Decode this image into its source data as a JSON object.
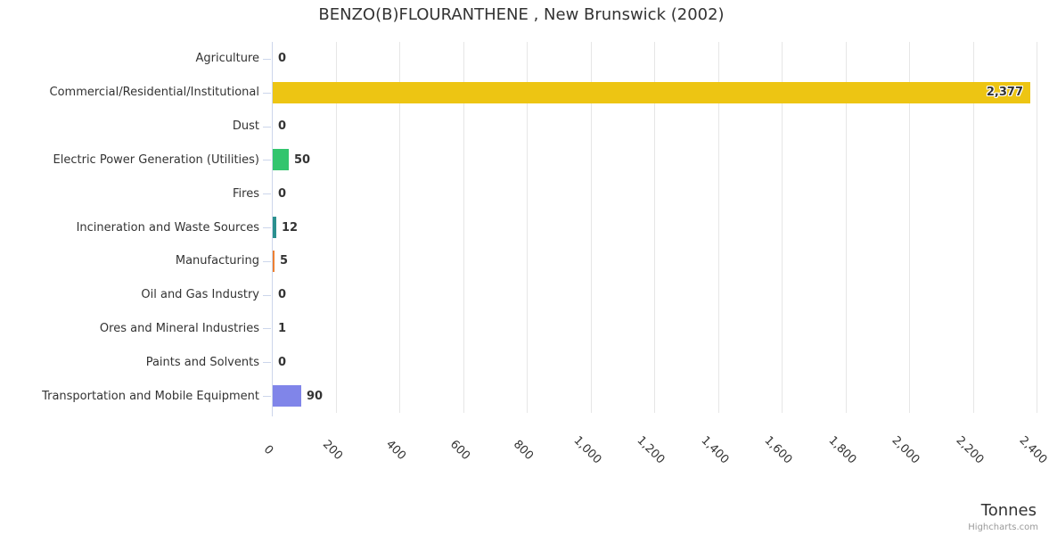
{
  "title": "BENZO(B)FLOURANTHENE , New Brunswick (2002)",
  "x_axis_title": "Tonnes",
  "credit": "Highcharts.com",
  "chart_data": {
    "type": "bar",
    "orientation": "horizontal",
    "title": "BENZO(B)FLOURANTHENE , New Brunswick (2002)",
    "xlabel": "Tonnes",
    "ylabel": "",
    "xlim": [
      0,
      2400
    ],
    "grid": "vertical-gridlines-only",
    "legend": "none",
    "categories": [
      "Agriculture",
      "Commercial/Residential/Institutional",
      "Dust",
      "Electric Power Generation (Utilities)",
      "Fires",
      "Incineration and Waste Sources",
      "Manufacturing",
      "Oil and Gas Industry",
      "Ores and Mineral Industries",
      "Paints and Solvents",
      "Transportation and Mobile Equipment"
    ],
    "values": [
      0,
      2377,
      0,
      50,
      0,
      12,
      5,
      0,
      1,
      0,
      90
    ],
    "value_labels": [
      "0",
      "2,377",
      "0",
      "50",
      "0",
      "12",
      "5",
      "0",
      "1",
      "0",
      "90"
    ],
    "bar_colors": [
      null,
      "#edc513",
      null,
      "#32c56e",
      null,
      "#2b908f",
      "#ed8032",
      null,
      null,
      null,
      "#8085e9"
    ],
    "x_tick_values": [
      0,
      200,
      400,
      600,
      800,
      1000,
      1200,
      1400,
      1600,
      1800,
      2000,
      2200,
      2400
    ],
    "x_tick_labels": [
      "0",
      "200",
      "400",
      "600",
      "800",
      "1,000",
      "1,200",
      "1,400",
      "1,600",
      "1,800",
      "2,000",
      "2,200",
      "2,400"
    ]
  },
  "colors": {
    "background": "#ffffff",
    "title_text": "#333333",
    "label_text": "#333333",
    "value_label_text": "#333333",
    "gridline": "#e6e6e6",
    "axis_line": "#ccd6eb",
    "credit_text": "#999999"
  }
}
